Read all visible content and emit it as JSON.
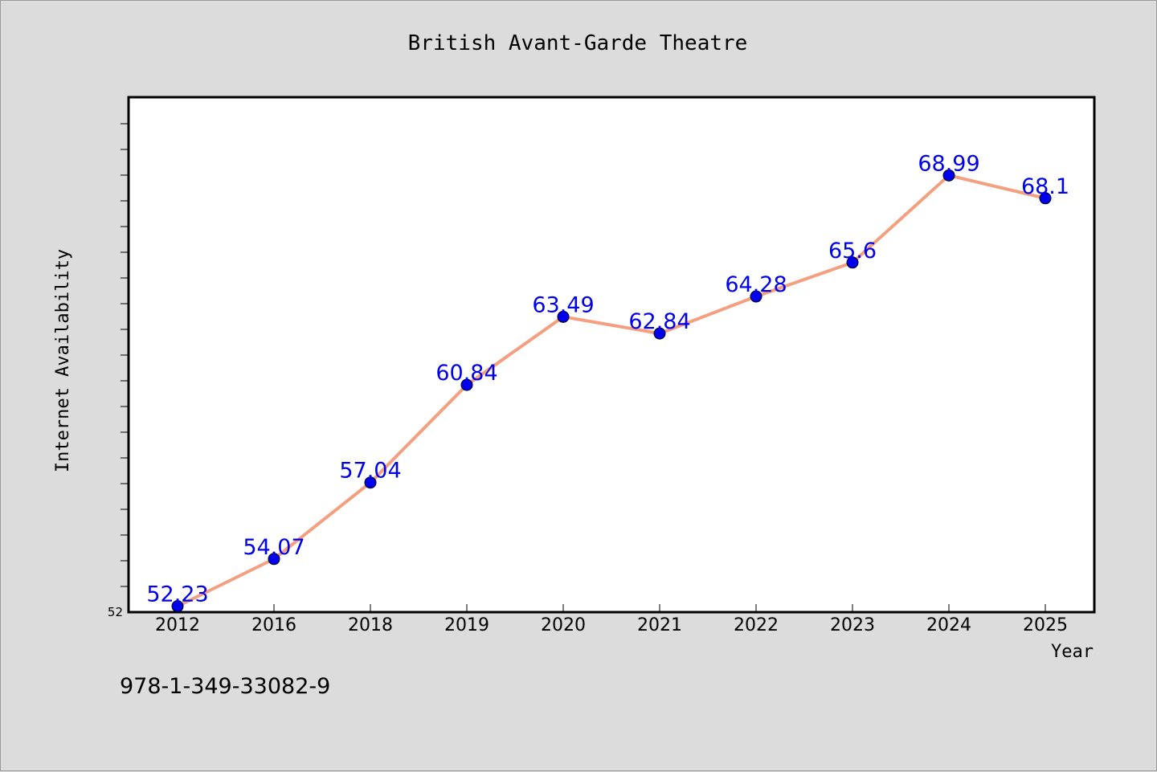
{
  "chart_data": {
    "type": "line",
    "title": "British Avant-Garde Theatre",
    "xlabel": "Year",
    "ylabel": "Internet Availability",
    "categories": [
      "2012",
      "2016",
      "2018",
      "2019",
      "2020",
      "2021",
      "2022",
      "2023",
      "2024",
      "2025"
    ],
    "series": [
      {
        "values": [
          52.23,
          54.07,
          57.04,
          60.84,
          63.49,
          62.84,
          64.28,
          65.6,
          68.99,
          68.1
        ],
        "labels": [
          "52.23",
          "54.07",
          "57.04",
          "60.84",
          "63.49",
          "62.84",
          "64.28",
          "65.6",
          "68.99",
          "68.1"
        ]
      }
    ],
    "ylim": [
      52,
      72
    ],
    "ytick_labels": [
      "52"
    ],
    "grid": false,
    "line_color": "#f4a080",
    "marker_color": "#0000ee",
    "label_color": "#0000ee"
  },
  "footer": {
    "isbn": "978-1-349-33082-9"
  }
}
